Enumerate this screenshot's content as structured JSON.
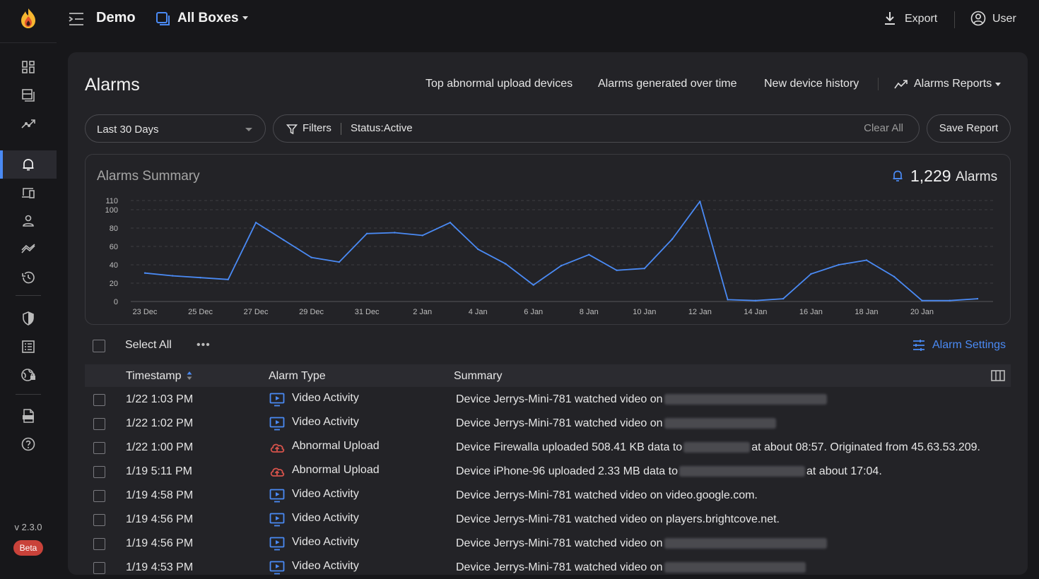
{
  "header": {
    "workspace": "Demo",
    "box_selector": "All Boxes",
    "export_label": "Export",
    "user_label": "User"
  },
  "sidebar": {
    "version": "v 2.3.0",
    "badge": "Beta",
    "active_item": "alarms",
    "icons": [
      "dashboard-icon",
      "boxes-icon",
      "network-flows-icon",
      "bell-icon",
      "devices-icon",
      "user-icon",
      "trends-icon",
      "history-icon",
      "shield-icon",
      "rules-icon",
      "globe-lock-icon",
      "api-doc-icon",
      "help-icon"
    ]
  },
  "page": {
    "title": "Alarms",
    "nav_links": [
      "Top abnormal upload devices",
      "Alarms generated over time",
      "New device history"
    ],
    "reports_label": "Alarms Reports"
  },
  "filters": {
    "date_range": "Last 30 Days",
    "filters_label": "Filters",
    "status_filter": "Status:Active",
    "clear_label": "Clear All",
    "save_label": "Save Report"
  },
  "summary": {
    "title": "Alarms Summary",
    "count": "1,229",
    "unit": "Alarms"
  },
  "chart_data": {
    "type": "line",
    "title": "",
    "x_ticks": [
      "23 Dec",
      "25 Dec",
      "27 Dec",
      "29 Dec",
      "31 Dec",
      "2 Jan",
      "4 Jan",
      "6 Jan",
      "8 Jan",
      "10 Jan",
      "12 Jan",
      "14 Jan",
      "16 Jan",
      "18 Jan",
      "20 Jan"
    ],
    "y_ticks": [
      0,
      20,
      40,
      60,
      80,
      100,
      110
    ],
    "ylim": [
      0,
      110
    ],
    "grid": true,
    "color": "#4a8af4",
    "series": [
      {
        "values": [
          31,
          28,
          26,
          24,
          86,
          67,
          48,
          43,
          74,
          75,
          72,
          86,
          57,
          41,
          18,
          39,
          51,
          34,
          36,
          68,
          109,
          2,
          1,
          3,
          30,
          40,
          45,
          27,
          1,
          1,
          3
        ]
      }
    ]
  },
  "table": {
    "select_all": "Select All",
    "more": "•••",
    "settings_label": "Alarm Settings",
    "columns": [
      "Timestamp",
      "Alarm Type",
      "Summary"
    ],
    "rows": [
      {
        "timestamp": "1/22 1:03 PM",
        "type": "Video Activity",
        "icon": "video-icon",
        "summary": "Device Jerrys-Mini-781 watched video on",
        "redacted": 230,
        "tail": ""
      },
      {
        "timestamp": "1/22 1:02 PM",
        "type": "Video Activity",
        "icon": "video-icon",
        "summary": "Device Jerrys-Mini-781 watched video on",
        "redacted": 158,
        "tail": ""
      },
      {
        "timestamp": "1/22 1:00 PM",
        "type": "Abnormal Upload",
        "icon": "upload-cloud-icon",
        "summary": "Device Firewalla uploaded 508.41 KB data to",
        "redacted": 94,
        "tail": "at about 08:57. Originated from 45.63.53.209."
      },
      {
        "timestamp": "1/19 5:11 PM",
        "type": "Abnormal Upload",
        "icon": "upload-cloud-icon",
        "summary": "Device iPhone-96 uploaded 2.33 MB data to",
        "redacted": 178,
        "tail": "at about 17:04."
      },
      {
        "timestamp": "1/19 4:58 PM",
        "type": "Video Activity",
        "icon": "video-icon",
        "summary": "Device Jerrys-Mini-781 watched video on video.google.com.",
        "redacted": 0,
        "tail": ""
      },
      {
        "timestamp": "1/19 4:56 PM",
        "type": "Video Activity",
        "icon": "video-icon",
        "summary": "Device Jerrys-Mini-781 watched video on players.brightcove.net.",
        "redacted": 0,
        "tail": ""
      },
      {
        "timestamp": "1/19 4:56 PM",
        "type": "Video Activity",
        "icon": "video-icon",
        "summary": "Device Jerrys-Mini-781 watched video on",
        "redacted": 230,
        "tail": ""
      },
      {
        "timestamp": "1/19 4:53 PM",
        "type": "Video Activity",
        "icon": "video-icon",
        "summary": "Device Jerrys-Mini-781 watched video on",
        "redacted": 200,
        "tail": ""
      }
    ]
  }
}
